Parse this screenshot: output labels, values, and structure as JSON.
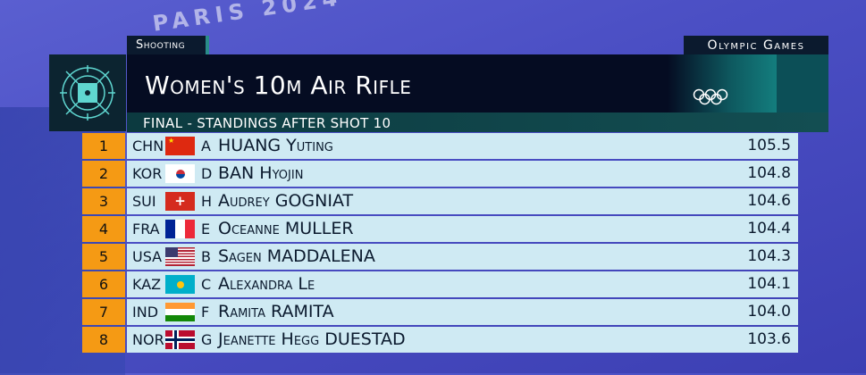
{
  "header": {
    "sport": "Shooting",
    "games": "Olympic Games",
    "title": "Women's 10m Air Rifle",
    "subtitle": "FINAL - STANDINGS AFTER SHOT 10"
  },
  "background_text": "PARIS 2024",
  "colors": {
    "rank_bg": "#f59a14",
    "row_bg": "#cfeaf3",
    "header_bg": "#050c22"
  },
  "standings": [
    {
      "rank": "1",
      "noc": "CHN",
      "flag": "china-flag",
      "bib": "A",
      "name": "HUANG Yuting",
      "score": "105.5"
    },
    {
      "rank": "2",
      "noc": "KOR",
      "flag": "korea-flag",
      "bib": "D",
      "name": "BAN Hyojin",
      "score": "104.8"
    },
    {
      "rank": "3",
      "noc": "SUI",
      "flag": "switzerland-flag",
      "bib": "H",
      "name": "Audrey GOGNIAT",
      "score": "104.6"
    },
    {
      "rank": "4",
      "noc": "FRA",
      "flag": "france-flag",
      "bib": "E",
      "name": "Oceanne MULLER",
      "score": "104.4"
    },
    {
      "rank": "5",
      "noc": "USA",
      "flag": "usa-flag",
      "bib": "B",
      "name": "Sagen MADDALENA",
      "score": "104.3"
    },
    {
      "rank": "6",
      "noc": "KAZ",
      "flag": "kazakhstan-flag",
      "bib": "C",
      "name": "Alexandra Le",
      "score": "104.1"
    },
    {
      "rank": "7",
      "noc": "IND",
      "flag": "india-flag",
      "bib": "F",
      "name": "Ramita RAMITA",
      "score": "104.0"
    },
    {
      "rank": "8",
      "noc": "NOR",
      "flag": "norway-flag",
      "bib": "G",
      "name": "Jeanette Hegg DUESTAD",
      "score": "103.6"
    }
  ]
}
